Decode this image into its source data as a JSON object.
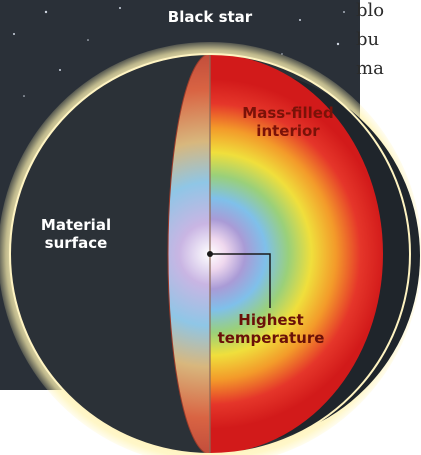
{
  "diagram": {
    "title": "Black star",
    "labels": {
      "mass_line1": "Mass-filled",
      "mass_line2": "interior",
      "surface_line1": "Material",
      "surface_line2": "surface",
      "temp_line1": "Highest",
      "temp_line2": "temperature"
    }
  },
  "article_text": {
    "line1": "blo",
    "line2": "bu",
    "line3": "ma"
  },
  "colors": {
    "space_background": "#2a3038",
    "sphere_dark": "#2b3137",
    "glow": "#fff6c8",
    "core_hot": "#ffffff",
    "outer_red": "#d91c1c"
  }
}
